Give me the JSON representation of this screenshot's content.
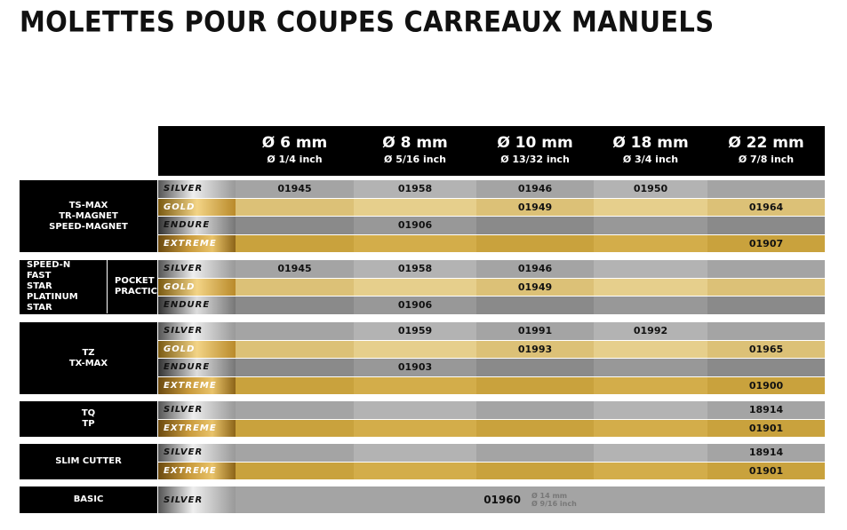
{
  "title": "MOLETTES POUR COUPES CARREAUX MANUELS",
  "header": [
    {
      "mm": "Ø 6 mm",
      "inch": "Ø 1/4 inch"
    },
    {
      "mm": "Ø 8 mm",
      "inch": "Ø 5/16 inch"
    },
    {
      "mm": "Ø 10 mm",
      "inch": "Ø 13/32 inch"
    },
    {
      "mm": "Ø 18 mm",
      "inch": "Ø 3/4 inch"
    },
    {
      "mm": "Ø 22 mm",
      "inch": "Ø 7/8 inch"
    }
  ],
  "groups": [
    {
      "models": [
        "TS-MAX",
        "TR-MAGNET",
        "SPEED-MAGNET"
      ],
      "rows": [
        {
          "tier": "SILVER",
          "cells": [
            "01945",
            "01958",
            "01946",
            "01950",
            null
          ]
        },
        {
          "tier": "GOLD",
          "cells": [
            null,
            null,
            "01949",
            null,
            "01964"
          ]
        },
        {
          "tier": "ENDURE",
          "cells": [
            null,
            "01906",
            null,
            null,
            null
          ]
        },
        {
          "tier": "EXTREME",
          "cells": [
            null,
            null,
            null,
            null,
            "01907"
          ]
        }
      ]
    },
    {
      "models": [
        "SPEED-N",
        "FAST",
        "STAR PLATINUM",
        "STAR"
      ],
      "models_right": [
        "POCKET",
        "PRACTIC"
      ],
      "rows": [
        {
          "tier": "SILVER",
          "cells": [
            "01945",
            "01958",
            "01946",
            null,
            null
          ]
        },
        {
          "tier": "GOLD",
          "cells": [
            null,
            null,
            "01949",
            null,
            null
          ]
        },
        {
          "tier": "ENDURE",
          "cells": [
            null,
            "01906",
            null,
            null,
            null
          ]
        }
      ]
    },
    {
      "models": [
        "TZ",
        "TX-MAX"
      ],
      "rows": [
        {
          "tier": "SILVER",
          "cells": [
            null,
            "01959",
            "01991",
            "01992",
            null
          ]
        },
        {
          "tier": "GOLD",
          "cells": [
            null,
            null,
            "01993",
            null,
            "01965"
          ]
        },
        {
          "tier": "ENDURE",
          "cells": [
            null,
            "01903",
            null,
            null,
            null
          ]
        },
        {
          "tier": "EXTREME",
          "cells": [
            null,
            null,
            null,
            null,
            "01900"
          ]
        }
      ]
    },
    {
      "models": [
        "TQ",
        "TP"
      ],
      "rows": [
        {
          "tier": "SILVER",
          "cells": [
            null,
            null,
            null,
            null,
            "18914"
          ]
        },
        {
          "tier": "EXTREME",
          "cells": [
            null,
            null,
            null,
            null,
            "01901"
          ]
        }
      ]
    },
    {
      "models": [
        "SLIM CUTTER"
      ],
      "rows": [
        {
          "tier": "SILVER",
          "cells": [
            null,
            null,
            null,
            null,
            "18914"
          ]
        },
        {
          "tier": "EXTREME",
          "cells": [
            null,
            null,
            null,
            null,
            "01901"
          ]
        }
      ]
    },
    {
      "models": [
        "BASIC"
      ],
      "rows": [
        {
          "tier": "SILVER",
          "code": "01960",
          "notes": [
            "Ø 14 mm",
            "Ø 9/16 inch"
          ]
        }
      ]
    }
  ]
}
